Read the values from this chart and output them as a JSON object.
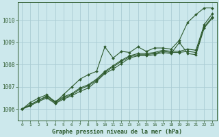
{
  "title": "Graphe pression niveau de la mer (hPa)",
  "background_color": "#cce8ec",
  "grid_color": "#aaccd4",
  "line_color": "#2d5a2d",
  "xlim": [
    -0.5,
    23.5
  ],
  "ylim": [
    1005.5,
    1010.8
  ],
  "yticks": [
    1006,
    1007,
    1008,
    1009,
    1010
  ],
  "xticks": [
    0,
    1,
    2,
    3,
    4,
    5,
    6,
    7,
    8,
    9,
    10,
    11,
    12,
    13,
    14,
    15,
    16,
    17,
    18,
    19,
    20,
    21,
    22,
    23
  ],
  "x_values": [
    0,
    1,
    2,
    3,
    4,
    5,
    6,
    7,
    8,
    9,
    10,
    11,
    12,
    13,
    14,
    15,
    16,
    17,
    18,
    19,
    20,
    21,
    22,
    23
  ],
  "series": [
    [
      1006.0,
      1006.3,
      1006.5,
      1006.65,
      1006.3,
      1006.65,
      1007.0,
      1007.35,
      1007.55,
      1007.7,
      1008.8,
      1008.3,
      1008.6,
      1008.55,
      1008.8,
      1008.6,
      1008.75,
      1008.75,
      1008.7,
      1009.1,
      1009.9,
      1010.25,
      1010.55,
      1010.55
    ],
    [
      1006.0,
      1006.2,
      1006.4,
      1006.6,
      1006.35,
      1006.55,
      1006.7,
      1006.95,
      1007.1,
      1007.35,
      1007.7,
      1007.95,
      1008.2,
      1008.4,
      1008.5,
      1008.5,
      1008.55,
      1008.65,
      1008.6,
      1008.6,
      1008.7,
      1008.65,
      1009.8,
      1010.3
    ],
    [
      1006.0,
      1006.2,
      1006.4,
      1006.55,
      1006.3,
      1006.5,
      1006.65,
      1006.9,
      1007.05,
      1007.3,
      1007.65,
      1007.9,
      1008.15,
      1008.35,
      1008.45,
      1008.45,
      1008.5,
      1008.6,
      1008.55,
      1008.55,
      1008.6,
      1008.55,
      1009.7,
      1010.15
    ],
    [
      1006.0,
      1006.15,
      1006.35,
      1006.5,
      1006.25,
      1006.45,
      1006.6,
      1006.8,
      1006.95,
      1007.25,
      1007.6,
      1007.8,
      1008.05,
      1008.3,
      1008.4,
      1008.4,
      1008.45,
      1008.55,
      1008.5,
      1009.0,
      1008.5,
      1008.45,
      1009.65,
      1010.1
    ]
  ]
}
